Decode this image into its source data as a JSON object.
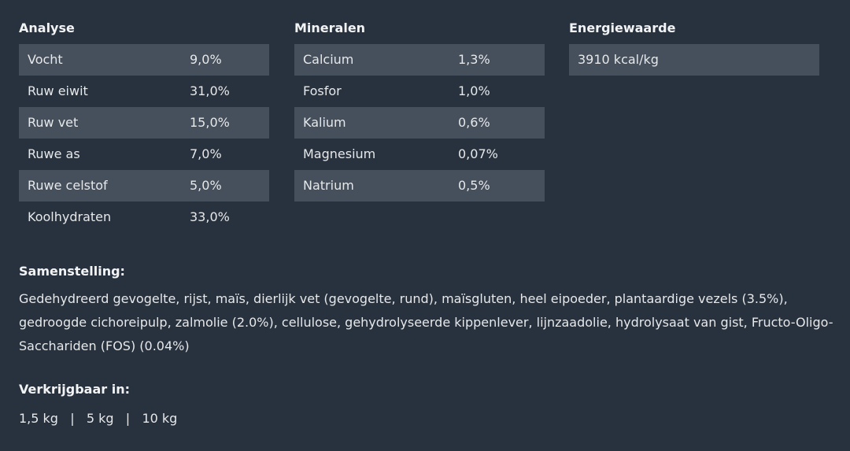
{
  "columns": [
    {
      "title": "Analyse",
      "rows": [
        [
          "Vocht",
          "9,0%"
        ],
        [
          "Ruw eiwit",
          "31,0%"
        ],
        [
          "Ruw vet",
          "15,0%"
        ],
        [
          "Ruwe as",
          "7,0%"
        ],
        [
          "Ruwe celstof",
          "5,0%"
        ],
        [
          "Koolhydraten",
          "33,0%"
        ]
      ]
    },
    {
      "title": "Mineralen",
      "rows": [
        [
          "Calcium",
          "1,3%"
        ],
        [
          "Fosfor",
          "1,0%"
        ],
        [
          "Kalium",
          "0,6%"
        ],
        [
          "Magnesium",
          "0,07%"
        ],
        [
          "Natrium",
          "0,5%"
        ]
      ]
    },
    {
      "title": "Energiewaarde",
      "rows": [
        [
          "3910 kcal/kg"
        ]
      ]
    }
  ],
  "composition": {
    "title": "Samenstelling:",
    "text": "Gedehydreerd gevogelte, rijst, maïs, dierlijk vet (gevogelte, rund), maïsgluten, heel eipoeder, plantaardige vezels (3.5%), gedroogde cichoreipulp, zalmolie (2.0%), cellulose, gehydrolyseerde kippenlever, lijnzaadolie, hydrolysaat van gist, Fructo-Oligo-Sacchariden (FOS) (0.04%)"
  },
  "availability": {
    "title": "Verkrijgbaar in:",
    "sizes": "1,5 kg   |   5 kg   |   10 kg"
  }
}
